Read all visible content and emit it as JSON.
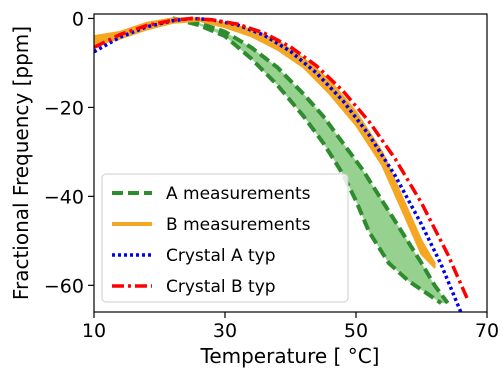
{
  "chart_data": {
    "type": "line",
    "xlabel": "Temperature [$^\\circ C$]",
    "xlabel_display": "Temperature [ °C]",
    "ylabel": "Fractional Frequency  [ppm]",
    "xlim": [
      10,
      70
    ],
    "ylim": [
      -66,
      1
    ],
    "xticks": [
      10,
      30,
      50,
      70
    ],
    "yticks": [
      0,
      -20,
      -40,
      -60
    ],
    "xtick_labels": [
      "10",
      "30",
      "50",
      "70"
    ],
    "ytick_labels": [
      "0",
      "−20",
      "−40",
      "−60"
    ],
    "grid": false,
    "legend_position": "lower-left",
    "series": [
      {
        "name": "A measurements",
        "style": "dashed",
        "color": "#2e8b2e",
        "band_fill": "#8ccc84",
        "upper": [
          [
            22,
            0
          ],
          [
            26,
            -1
          ],
          [
            30,
            -3
          ],
          [
            34,
            -6.5
          ],
          [
            38,
            -11
          ],
          [
            42,
            -17
          ],
          [
            45,
            -22
          ],
          [
            48,
            -28
          ],
          [
            51,
            -34
          ],
          [
            54,
            -41
          ],
          [
            57,
            -48
          ],
          [
            60,
            -55
          ],
          [
            62,
            -60
          ],
          [
            64,
            -64
          ]
        ],
        "lower": [
          [
            22,
            0
          ],
          [
            26,
            -1.5
          ],
          [
            30,
            -4
          ],
          [
            34,
            -9
          ],
          [
            38,
            -15
          ],
          [
            42,
            -22
          ],
          [
            45,
            -28
          ],
          [
            48,
            -35
          ],
          [
            50,
            -41
          ],
          [
            52,
            -48
          ],
          [
            55,
            -55
          ],
          [
            58,
            -59
          ],
          [
            61,
            -62
          ],
          [
            63,
            -64
          ]
        ]
      },
      {
        "name": "B measurements",
        "style": "solid",
        "color": "#f5a623",
        "upper": [
          [
            10,
            -4
          ],
          [
            14,
            -3
          ],
          [
            18,
            -1
          ],
          [
            22,
            0
          ],
          [
            26,
            0
          ],
          [
            30,
            -1
          ],
          [
            34,
            -2.5
          ],
          [
            38,
            -5
          ],
          [
            42,
            -9
          ],
          [
            46,
            -14
          ],
          [
            50,
            -21
          ],
          [
            54,
            -30
          ],
          [
            57,
            -40
          ],
          [
            60,
            -50
          ],
          [
            62,
            -55
          ]
        ],
        "lower": [
          [
            10,
            -6
          ],
          [
            14,
            -4.5
          ],
          [
            18,
            -2.5
          ],
          [
            22,
            -1
          ],
          [
            26,
            -0.5
          ],
          [
            30,
            -2
          ],
          [
            34,
            -4
          ],
          [
            38,
            -7
          ],
          [
            42,
            -11
          ],
          [
            46,
            -17
          ],
          [
            50,
            -24
          ],
          [
            54,
            -33
          ],
          [
            57,
            -43
          ],
          [
            60,
            -53
          ],
          [
            62,
            -56
          ]
        ]
      },
      {
        "name": "Crystal A typ",
        "style": "dotted",
        "color": "#0000ee",
        "values": [
          [
            10,
            -7.5
          ],
          [
            14,
            -4.2
          ],
          [
            18,
            -1.9
          ],
          [
            22,
            -0.5
          ],
          [
            25,
            0
          ],
          [
            28,
            -0.3
          ],
          [
            32,
            -1.5
          ],
          [
            36,
            -3.8
          ],
          [
            40,
            -7.4
          ],
          [
            44,
            -12.3
          ],
          [
            48,
            -18.5
          ],
          [
            52,
            -26.2
          ],
          [
            56,
            -35.4
          ],
          [
            60,
            -46.3
          ],
          [
            63,
            -55.3
          ],
          [
            66,
            -66
          ]
        ]
      },
      {
        "name": "Crystal B typ",
        "style": "dashdot",
        "color": "#ff0000",
        "values": [
          [
            10,
            -6.5
          ],
          [
            14,
            -3.6
          ],
          [
            18,
            -1.6
          ],
          [
            22,
            -0.4
          ],
          [
            25,
            0
          ],
          [
            28,
            -0.3
          ],
          [
            32,
            -1.3
          ],
          [
            36,
            -3.3
          ],
          [
            40,
            -6.4
          ],
          [
            44,
            -10.7
          ],
          [
            48,
            -16.3
          ],
          [
            52,
            -23.2
          ],
          [
            56,
            -31.6
          ],
          [
            60,
            -41.5
          ],
          [
            64,
            -53
          ],
          [
            67,
            -63
          ]
        ]
      }
    ]
  }
}
